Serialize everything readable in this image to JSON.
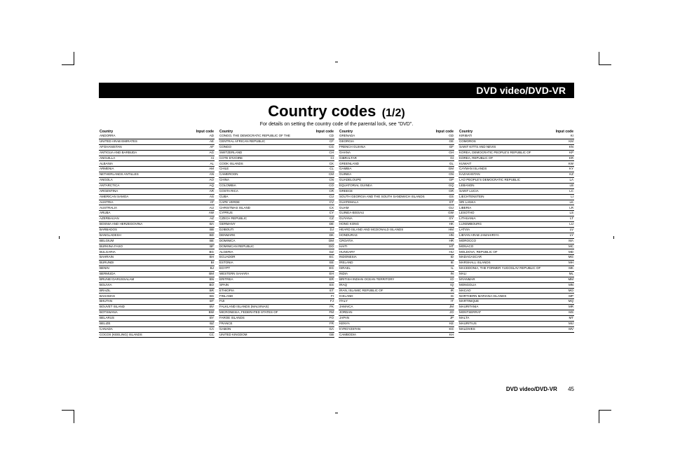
{
  "header": {
    "label": "DVD video/DVD-VR"
  },
  "title": {
    "main": "Country codes",
    "sub": "(1/2)"
  },
  "subtitle": "For details on setting the country code of the parental lock, see \"DVD\".",
  "columns": {
    "headers": {
      "country": "Country",
      "code": "Input code"
    }
  },
  "footer": {
    "section": "DVD video/DVD-VR",
    "page": "45"
  },
  "codes": [
    {
      "n": "ANDORRA",
      "c": "AD"
    },
    {
      "n": "UNITED ARAB EMIRATES",
      "c": "AE"
    },
    {
      "n": "AFGHANISTAN",
      "c": "AF"
    },
    {
      "n": "ANTIGUA AND BARBUDA",
      "c": "AG"
    },
    {
      "n": "ANGUILLA",
      "c": "AI"
    },
    {
      "n": "ALBANIA",
      "c": "AL"
    },
    {
      "n": "ARMENIA",
      "c": "AM"
    },
    {
      "n": "NETHERLANDS ANTILLES",
      "c": "AN"
    },
    {
      "n": "ANGOLA",
      "c": "AO"
    },
    {
      "n": "ANTARCTICA",
      "c": "AQ"
    },
    {
      "n": "ARGENTINA",
      "c": "AR"
    },
    {
      "n": "AMERICAN SAMOA",
      "c": "AS"
    },
    {
      "n": "AUSTRIA",
      "c": "AT"
    },
    {
      "n": "AUSTRALIA",
      "c": "AU"
    },
    {
      "n": "ARUBA",
      "c": "AW"
    },
    {
      "n": "AZERBAIJAN",
      "c": "AZ"
    },
    {
      "n": "BOSNIA AND HERZEGOVINA",
      "c": "BA"
    },
    {
      "n": "BARBADOS",
      "c": "BB"
    },
    {
      "n": "BANGLADESH",
      "c": "BD"
    },
    {
      "n": "BELGIUM",
      "c": "BE"
    },
    {
      "n": "BURKINA FASO",
      "c": "BF"
    },
    {
      "n": "BULGARIA",
      "c": "BG"
    },
    {
      "n": "BAHRAIN",
      "c": "BH"
    },
    {
      "n": "BURUNDI",
      "c": "BI"
    },
    {
      "n": "BENIN",
      "c": "BJ"
    },
    {
      "n": "BERMUDA",
      "c": "BM"
    },
    {
      "n": "BRUNEI DARUSSALAM",
      "c": "BN"
    },
    {
      "n": "BOLIVIA",
      "c": "BO"
    },
    {
      "n": "BRAZIL",
      "c": "BR"
    },
    {
      "n": "BAHAMAS",
      "c": "BS"
    },
    {
      "n": "BHUTAN",
      "c": "BT"
    },
    {
      "n": "BOUVET ISLAND",
      "c": "BV"
    },
    {
      "n": "BOTSWANA",
      "c": "BW"
    },
    {
      "n": "BELARUS",
      "c": "BY"
    },
    {
      "n": "BELIZE",
      "c": "BZ"
    },
    {
      "n": "CANADA",
      "c": "CA"
    },
    {
      "n": "COCOS (KEELING) ISLANDS",
      "c": "CC"
    },
    {
      "n": "CONGO, THE DEMOCRATIC REPUBLIC OF THE",
      "c": "CD"
    },
    {
      "n": "CENTRAL AFRICAN REPUBLIC",
      "c": "CF"
    },
    {
      "n": "CONGO",
      "c": "CG"
    },
    {
      "n": "SWITZERLAND",
      "c": "CH"
    },
    {
      "n": "COTE D'IVOIRE",
      "c": "CI"
    },
    {
      "n": "COOK ISLANDS",
      "c": "CK"
    },
    {
      "n": "CHILE",
      "c": "CL"
    },
    {
      "n": "CAMEROON",
      "c": "CM"
    },
    {
      "n": "CHINA",
      "c": "CN"
    },
    {
      "n": "COLOMBIA",
      "c": "CO"
    },
    {
      "n": "COSTA RICA",
      "c": "CR"
    },
    {
      "n": "CUBA",
      "c": "CU"
    },
    {
      "n": "CAPE VERDE",
      "c": "CV"
    },
    {
      "n": "CHRISTMAS ISLAND",
      "c": "CX"
    },
    {
      "n": "CYPRUS",
      "c": "CY"
    },
    {
      "n": "CZECH REPUBLIC",
      "c": "CZ"
    },
    {
      "n": "GERMANY",
      "c": "DE"
    },
    {
      "n": "DJIBOUTI",
      "c": "DJ"
    },
    {
      "n": "DENMARK",
      "c": "DK"
    },
    {
      "n": "DOMINICA",
      "c": "DM"
    },
    {
      "n": "DOMINICAN REPUBLIC",
      "c": "DO"
    },
    {
      "n": "ALGERIA",
      "c": "DZ"
    },
    {
      "n": "ECUADOR",
      "c": "EC"
    },
    {
      "n": "ESTONIA",
      "c": "EE"
    },
    {
      "n": "EGYPT",
      "c": "EG"
    },
    {
      "n": "WESTERN SAHARA",
      "c": "EH"
    },
    {
      "n": "ERITREA",
      "c": "ER"
    },
    {
      "n": "SPAIN",
      "c": "ES"
    },
    {
      "n": "ETHIOPIA",
      "c": "ET"
    },
    {
      "n": "FINLAND",
      "c": "FI"
    },
    {
      "n": "FIJI",
      "c": "FJ"
    },
    {
      "n": "FALKLAND ISLANDS (MALVINAS)",
      "c": "FK"
    },
    {
      "n": "MICRONESIA, FEDERATED STATES OF",
      "c": "FM"
    },
    {
      "n": "FAROE ISLANDS",
      "c": "FO"
    },
    {
      "n": "FRANCE",
      "c": "FR"
    },
    {
      "n": "GABON",
      "c": "GA"
    },
    {
      "n": "UNITED KINGDOM",
      "c": "GB"
    },
    {
      "n": "GRENADA",
      "c": "GD"
    },
    {
      "n": "GEORGIA",
      "c": "GE"
    },
    {
      "n": "FRENCH GUIANA",
      "c": "GF"
    },
    {
      "n": "GHANA",
      "c": "GH"
    },
    {
      "n": "GIBRALTAR",
      "c": "GI"
    },
    {
      "n": "GREENLAND",
      "c": "GL"
    },
    {
      "n": "GAMBIA",
      "c": "GM"
    },
    {
      "n": "GUINEA",
      "c": "GN"
    },
    {
      "n": "GUADELOUPE",
      "c": "GP"
    },
    {
      "n": "EQUATORIAL GUINEA",
      "c": "GQ"
    },
    {
      "n": "GREECE",
      "c": "GR"
    },
    {
      "n": "SOUTH GEORGIA AND THE SOUTH SANDWICH ISLANDS",
      "c": "GS"
    },
    {
      "n": "GUATEMALA",
      "c": "GT"
    },
    {
      "n": "GUAM",
      "c": "GU"
    },
    {
      "n": "GUINEA-BISSAU",
      "c": "GW"
    },
    {
      "n": "GUYANA",
      "c": "GY"
    },
    {
      "n": "HONG KONG",
      "c": "HK"
    },
    {
      "n": "HEARD ISLAND AND MCDONALD ISLANDS",
      "c": "HM"
    },
    {
      "n": "HONDURAS",
      "c": "HN"
    },
    {
      "n": "CROATIA",
      "c": "HR"
    },
    {
      "n": "HAITI",
      "c": "HT"
    },
    {
      "n": "HUNGARY",
      "c": "HU"
    },
    {
      "n": "INDONESIA",
      "c": "ID"
    },
    {
      "n": "IRELAND",
      "c": "IE"
    },
    {
      "n": "ISRAEL",
      "c": "IL"
    },
    {
      "n": "INDIA",
      "c": "IN"
    },
    {
      "n": "BRITISH INDIAN OCEAN TERRITORY",
      "c": "IO"
    },
    {
      "n": "IRAQ",
      "c": "IQ"
    },
    {
      "n": "IRAN, ISLAMIC REPUBLIC OF",
      "c": "IR"
    },
    {
      "n": "ICELAND",
      "c": "IS"
    },
    {
      "n": "ITALY",
      "c": "IT"
    },
    {
      "n": "JAMAICA",
      "c": "JM"
    },
    {
      "n": "JORDAN",
      "c": "JO"
    },
    {
      "n": "JAPAN",
      "c": "JP"
    },
    {
      "n": "KENYA",
      "c": "KE"
    },
    {
      "n": "KYRGYZSTAN",
      "c": "KG"
    },
    {
      "n": "CAMBODIA",
      "c": "KH"
    },
    {
      "n": "KIRIBATI",
      "c": "KI"
    },
    {
      "n": "COMOROS",
      "c": "KM"
    },
    {
      "n": "SAINT KITTS AND NEVIS",
      "c": "KN"
    },
    {
      "n": "KOREA, DEMOCRATIC PEOPLE'S REPUBLIC OF",
      "c": "KP"
    },
    {
      "n": "KOREA, REPUBLIC OF",
      "c": "KR"
    },
    {
      "n": "KUWAIT",
      "c": "KW"
    },
    {
      "n": "CAYMAN ISLANDS",
      "c": "KY"
    },
    {
      "n": "KAZAKHSTAN",
      "c": "KZ"
    },
    {
      "n": "LAO PEOPLE'S DEMOCRATIC REPUBLIC",
      "c": "LA"
    },
    {
      "n": "LEBANON",
      "c": "LB"
    },
    {
      "n": "SAINT LUCIA",
      "c": "LC"
    },
    {
      "n": "LIECHTENSTEIN",
      "c": "LI"
    },
    {
      "n": "SRI LANKA",
      "c": "LK"
    },
    {
      "n": "LIBERIA",
      "c": "LR"
    },
    {
      "n": "LESOTHO",
      "c": "LS"
    },
    {
      "n": "LITHUANIA",
      "c": "LT"
    },
    {
      "n": "LUXEMBOURG",
      "c": "LU"
    },
    {
      "n": "LATVIA",
      "c": "LV"
    },
    {
      "n": "LIBYAN ARAB JAMAHIRIYA",
      "c": "LY"
    },
    {
      "n": "MOROCCO",
      "c": "MA"
    },
    {
      "n": "MONACO",
      "c": "MC"
    },
    {
      "n": "MOLDOVA, REPUBLIC OF",
      "c": "MD"
    },
    {
      "n": "MADAGASCAR",
      "c": "MG"
    },
    {
      "n": "MARSHALL ISLANDS",
      "c": "MH"
    },
    {
      "n": "MACEDONIA, THE FORMER YUGOSLAV REPUBLIC OF",
      "c": "MK"
    },
    {
      "n": "MALI",
      "c": "ML"
    },
    {
      "n": "MYANMAR",
      "c": "MM"
    },
    {
      "n": "MONGOLIA",
      "c": "MN"
    },
    {
      "n": "MACAO",
      "c": "MO"
    },
    {
      "n": "NORTHERN MARIANA ISLANDS",
      "c": "MP"
    },
    {
      "n": "MARTINIQUE",
      "c": "MQ"
    },
    {
      "n": "MAURITANIA",
      "c": "MR"
    },
    {
      "n": "MONTSERRAT",
      "c": "MS"
    },
    {
      "n": "MALTA",
      "c": "MT"
    },
    {
      "n": "MAURITIUS",
      "c": "MU"
    },
    {
      "n": "MALDIVES",
      "c": "MV"
    }
  ],
  "layout": {
    "cols": 4,
    "rows_per_col": 37
  }
}
